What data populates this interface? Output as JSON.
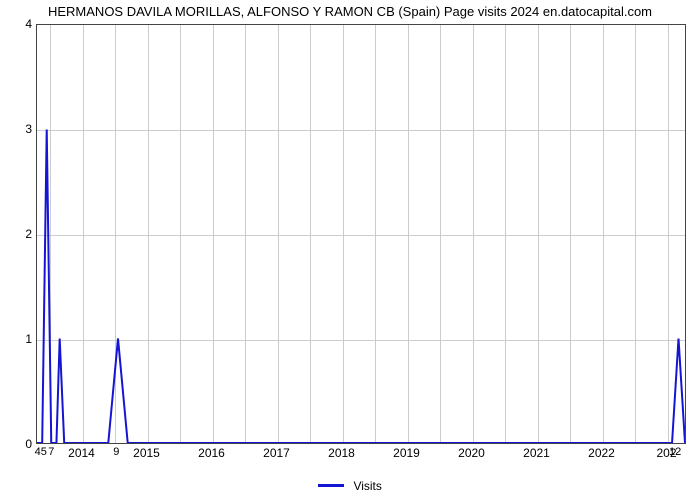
{
  "chart": {
    "type": "line",
    "title": "HERMANOS DAVILA MORILLAS, ALFONSO Y RAMON CB (Spain) Page visits 2024 en.datocapital.com",
    "title_fontsize": 13,
    "title_color": "#000000",
    "background_color": "#ffffff",
    "plot_border_color": "#444444",
    "grid_color": "#cccccc",
    "line_color": "#1414d2",
    "line_width": 2,
    "xlim": [
      2013.3,
      2023.3
    ],
    "ylim": [
      0,
      4
    ],
    "ytick_step": 1,
    "y_ticks": [
      0,
      1,
      2,
      3,
      4
    ],
    "x_major_ticks": [
      2014,
      2015,
      2016,
      2017,
      2018,
      2019,
      2020,
      2021,
      2022
    ],
    "x_major_labels": [
      "2014",
      "2015",
      "2016",
      "2017",
      "2018",
      "2019",
      "2020",
      "2021",
      "2022"
    ],
    "x_right_label": "202",
    "extra_labels": [
      {
        "text": "45",
        "x_year": 2013.34,
        "y_val": -0.12
      },
      {
        "text": "7",
        "x_year": 2013.55,
        "y_val": -0.12
      },
      {
        "text": "9",
        "x_year": 2014.55,
        "y_val": -0.12
      },
      {
        "text": "12",
        "x_year": 2023.1,
        "y_val": -0.12
      }
    ],
    "legend": {
      "label": "Visits",
      "swatch_color": "#1414d2"
    },
    "series": [
      {
        "name": "Visits",
        "points": [
          [
            2013.3,
            0.0
          ],
          [
            2013.38,
            0.0
          ],
          [
            2013.45,
            3.0
          ],
          [
            2013.52,
            0.0
          ],
          [
            2013.6,
            0.0
          ],
          [
            2013.65,
            1.0
          ],
          [
            2013.72,
            0.0
          ],
          [
            2014.4,
            0.0
          ],
          [
            2014.55,
            1.0
          ],
          [
            2014.7,
            0.0
          ],
          [
            2015.0,
            0.0
          ],
          [
            2016.0,
            0.0
          ],
          [
            2017.0,
            0.0
          ],
          [
            2018.0,
            0.0
          ],
          [
            2019.0,
            0.0
          ],
          [
            2020.0,
            0.0
          ],
          [
            2021.0,
            0.0
          ],
          [
            2022.0,
            0.0
          ],
          [
            2022.9,
            0.0
          ],
          [
            2023.1,
            0.0
          ],
          [
            2023.2,
            1.0
          ],
          [
            2023.3,
            0.0
          ]
        ]
      }
    ]
  }
}
